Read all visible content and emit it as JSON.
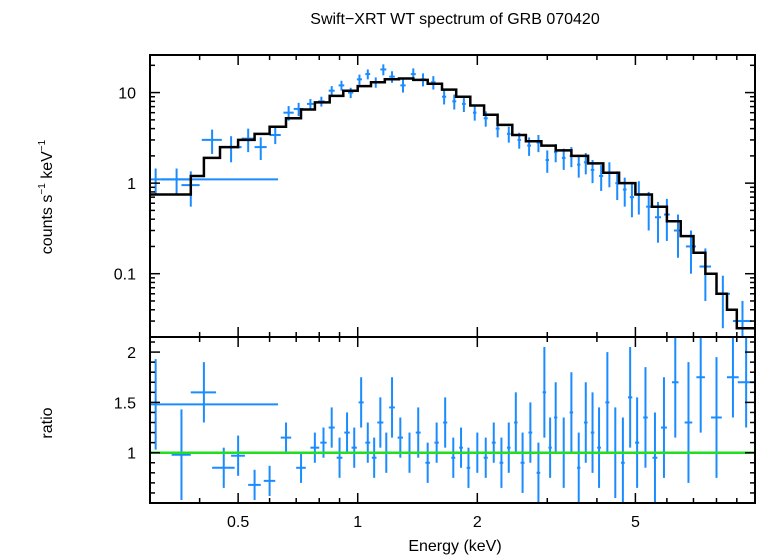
{
  "chart_data": [
    {
      "type": "scatter",
      "panel": "spectrum",
      "title": "Swift−XRT WT spectrum of GRB 070420",
      "ylabel_main": "counts s",
      "ylabel_sup1": "−1",
      "ylabel_mid": " keV",
      "ylabel_sup2": "−1",
      "x_scale": "log",
      "y_scale": "log",
      "xlim": [
        0.3,
        10
      ],
      "ylim": [
        0.02,
        26
      ],
      "yticks": [
        0.1,
        1,
        10
      ],
      "ytick_labels": [
        "0.1",
        "1",
        "10"
      ],
      "colors": {
        "data": "#1a8cff",
        "model": "#000000"
      },
      "data_points": [
        [
          0.31,
          0.32,
          1.1,
          0.35
        ],
        [
          0.35,
          0.03,
          1.1,
          0.35
        ],
        [
          0.38,
          0.02,
          0.95,
          0.4
        ],
        [
          0.43,
          0.025,
          3.0,
          0.9
        ],
        [
          0.48,
          0.03,
          2.5,
          0.8
        ],
        [
          0.53,
          0.02,
          3.1,
          0.9
        ],
        [
          0.57,
          0.02,
          2.5,
          0.7
        ],
        [
          0.62,
          0.02,
          3.4,
          0.7
        ],
        [
          0.67,
          0.02,
          6.0,
          1.1
        ],
        [
          0.71,
          0.02,
          6.6,
          1.1
        ],
        [
          0.76,
          0.015,
          7.5,
          1.0
        ],
        [
          0.81,
          0.015,
          8.0,
          1.0
        ],
        [
          0.86,
          0.015,
          10.5,
          1.3
        ],
        [
          0.91,
          0.015,
          12.0,
          1.5
        ],
        [
          0.96,
          0.015,
          10.0,
          1.3
        ],
        [
          1.01,
          0.015,
          14.0,
          1.8
        ],
        [
          1.06,
          0.015,
          16.0,
          2.0
        ],
        [
          1.11,
          0.015,
          13.0,
          1.7
        ],
        [
          1.16,
          0.02,
          18.0,
          2.5
        ],
        [
          1.22,
          0.02,
          15.0,
          2.2
        ],
        [
          1.3,
          0.02,
          12.0,
          2.0
        ],
        [
          1.38,
          0.02,
          16.0,
          2.5
        ],
        [
          1.46,
          0.02,
          14.0,
          2.3
        ],
        [
          1.55,
          0.02,
          13.0,
          2.2
        ],
        [
          1.65,
          0.02,
          9.0,
          1.6
        ],
        [
          1.75,
          0.02,
          8.0,
          1.5
        ],
        [
          1.85,
          0.02,
          7.5,
          1.4
        ],
        [
          1.97,
          0.02,
          6.0,
          1.1
        ],
        [
          2.1,
          0.025,
          5.2,
          1.0
        ],
        [
          2.25,
          0.025,
          4.0,
          0.8
        ],
        [
          2.4,
          0.025,
          3.5,
          0.7
        ],
        [
          2.55,
          0.025,
          3.0,
          0.6
        ],
        [
          2.7,
          0.03,
          2.6,
          0.6
        ],
        [
          2.85,
          0.03,
          2.8,
          0.6
        ],
        [
          3.0,
          0.03,
          1.8,
          0.5
        ],
        [
          3.15,
          0.03,
          2.2,
          0.5
        ],
        [
          3.3,
          0.035,
          1.9,
          0.5
        ],
        [
          3.45,
          0.035,
          2.0,
          0.5
        ],
        [
          3.6,
          0.035,
          1.6,
          0.45
        ],
        [
          3.75,
          0.04,
          1.7,
          0.45
        ],
        [
          3.9,
          0.04,
          1.4,
          0.4
        ],
        [
          4.1,
          0.05,
          1.2,
          0.38
        ],
        [
          4.3,
          0.05,
          1.3,
          0.4
        ],
        [
          4.5,
          0.05,
          1.0,
          0.35
        ],
        [
          4.7,
          0.05,
          0.85,
          0.3
        ],
        [
          4.9,
          0.06,
          0.7,
          0.28
        ],
        [
          5.1,
          0.06,
          0.75,
          0.3
        ],
        [
          5.4,
          0.08,
          0.55,
          0.25
        ],
        [
          5.7,
          0.1,
          0.42,
          0.2
        ],
        [
          6.0,
          0.1,
          0.45,
          0.22
        ],
        [
          6.4,
          0.15,
          0.3,
          0.15
        ],
        [
          6.9,
          0.2,
          0.2,
          0.1
        ],
        [
          7.5,
          0.25,
          0.12,
          0.07
        ],
        [
          8.3,
          0.35,
          0.06,
          0.035
        ],
        [
          9.3,
          0.5,
          0.03,
          0.02
        ]
      ],
      "model_steps": [
        [
          0.3,
          0.75
        ],
        [
          0.35,
          0.75
        ],
        [
          0.38,
          1.2
        ],
        [
          0.41,
          1.9
        ],
        [
          0.45,
          2.5
        ],
        [
          0.5,
          3.0
        ],
        [
          0.55,
          3.5
        ],
        [
          0.6,
          4.2
        ],
        [
          0.66,
          5.2
        ],
        [
          0.72,
          6.5
        ],
        [
          0.78,
          7.8
        ],
        [
          0.85,
          9.2
        ],
        [
          0.92,
          10.5
        ],
        [
          1.0,
          11.8
        ],
        [
          1.08,
          13.0
        ],
        [
          1.17,
          14.0
        ],
        [
          1.27,
          14.3
        ],
        [
          1.38,
          13.8
        ],
        [
          1.5,
          12.5
        ],
        [
          1.63,
          10.8
        ],
        [
          1.77,
          9.0
        ],
        [
          1.92,
          7.2
        ],
        [
          2.08,
          5.7
        ],
        [
          2.25,
          4.4
        ],
        [
          2.45,
          3.4
        ],
        [
          2.65,
          2.9
        ],
        [
          2.9,
          2.6
        ],
        [
          3.15,
          2.3
        ],
        [
          3.45,
          2.0
        ],
        [
          3.8,
          1.65
        ],
        [
          4.15,
          1.3
        ],
        [
          4.55,
          1.0
        ],
        [
          5.0,
          0.75
        ],
        [
          5.5,
          0.55
        ],
        [
          6.0,
          0.38
        ],
        [
          6.5,
          0.26
        ],
        [
          7.0,
          0.17
        ],
        [
          7.5,
          0.1
        ],
        [
          8.0,
          0.06
        ],
        [
          8.5,
          0.04
        ],
        [
          9.0,
          0.025
        ],
        [
          10.0,
          0.025
        ]
      ]
    },
    {
      "type": "scatter",
      "panel": "ratio",
      "ylabel": "ratio",
      "xlabel": "Energy (keV)",
      "x_scale": "log",
      "xlim": [
        0.3,
        10
      ],
      "ylim": [
        0.5,
        2.15
      ],
      "yticks": [
        1,
        1.5,
        2
      ],
      "ytick_labels": [
        "1",
        "1.5",
        "2"
      ],
      "xticks": [
        0.5,
        1,
        2,
        5
      ],
      "xtick_labels": [
        "0.5",
        "1",
        "2",
        "5"
      ],
      "reference_line": 1,
      "colors": {
        "data": "#1a8cff",
        "reference": "#22dd22"
      },
      "data_points": [
        [
          0.31,
          0.32,
          1.48,
          0.45
        ],
        [
          0.36,
          0.02,
          0.98,
          0.45
        ],
        [
          0.41,
          0.03,
          1.6,
          0.3
        ],
        [
          0.46,
          0.03,
          0.85,
          0.2
        ],
        [
          0.5,
          0.02,
          0.97,
          0.2
        ],
        [
          0.55,
          0.02,
          0.68,
          0.15
        ],
        [
          0.6,
          0.02,
          0.72,
          0.15
        ],
        [
          0.66,
          0.02,
          1.15,
          0.15
        ],
        [
          0.72,
          0.02,
          0.85,
          0.15
        ],
        [
          0.78,
          0.02,
          1.05,
          0.15
        ],
        [
          0.82,
          0.015,
          1.1,
          0.15
        ],
        [
          0.86,
          0.015,
          1.25,
          0.2
        ],
        [
          0.9,
          0.015,
          0.95,
          0.2
        ],
        [
          0.94,
          0.015,
          1.2,
          0.2
        ],
        [
          0.98,
          0.015,
          1.05,
          0.2
        ],
        [
          1.02,
          0.015,
          1.5,
          0.25
        ],
        [
          1.06,
          0.015,
          1.1,
          0.2
        ],
        [
          1.1,
          0.015,
          0.95,
          0.2
        ],
        [
          1.14,
          0.02,
          1.3,
          0.25
        ],
        [
          1.18,
          0.02,
          1.0,
          0.2
        ],
        [
          1.22,
          0.02,
          1.45,
          0.3
        ],
        [
          1.28,
          0.02,
          1.15,
          0.2
        ],
        [
          1.35,
          0.02,
          1.0,
          0.2
        ],
        [
          1.42,
          0.02,
          1.2,
          0.25
        ],
        [
          1.5,
          0.02,
          0.9,
          0.2
        ],
        [
          1.58,
          0.02,
          1.1,
          0.2
        ],
        [
          1.66,
          0.02,
          1.3,
          0.25
        ],
        [
          1.74,
          0.02,
          0.95,
          0.2
        ],
        [
          1.82,
          0.02,
          1.05,
          0.2
        ],
        [
          1.9,
          0.02,
          0.85,
          0.2
        ],
        [
          2.0,
          0.025,
          1.0,
          0.2
        ],
        [
          2.1,
          0.025,
          0.95,
          0.2
        ],
        [
          2.2,
          0.025,
          1.1,
          0.2
        ],
        [
          2.3,
          0.025,
          0.9,
          0.25
        ],
        [
          2.4,
          0.025,
          1.05,
          0.25
        ],
        [
          2.5,
          0.025,
          1.3,
          0.3
        ],
        [
          2.6,
          0.03,
          0.9,
          0.3
        ],
        [
          2.72,
          0.03,
          1.2,
          0.3
        ],
        [
          2.85,
          0.03,
          0.8,
          0.3
        ],
        [
          2.95,
          0.03,
          1.6,
          0.45
        ],
        [
          3.05,
          0.03,
          1.05,
          0.3
        ],
        [
          3.15,
          0.03,
          1.35,
          0.35
        ],
        [
          3.3,
          0.035,
          1.0,
          0.35
        ],
        [
          3.45,
          0.035,
          1.4,
          0.4
        ],
        [
          3.6,
          0.035,
          0.85,
          0.35
        ],
        [
          3.75,
          0.04,
          1.3,
          0.4
        ],
        [
          3.9,
          0.04,
          1.2,
          0.4
        ],
        [
          4.05,
          0.045,
          1.05,
          0.4
        ],
        [
          4.25,
          0.05,
          1.5,
          0.5
        ],
        [
          4.45,
          0.05,
          1.0,
          0.45
        ],
        [
          4.65,
          0.05,
          0.9,
          0.45
        ],
        [
          4.85,
          0.06,
          1.55,
          0.5
        ],
        [
          5.05,
          0.06,
          1.1,
          0.45
        ],
        [
          5.3,
          0.07,
          1.35,
          0.5
        ],
        [
          5.6,
          0.08,
          0.95,
          0.45
        ],
        [
          5.9,
          0.1,
          1.25,
          0.5
        ],
        [
          6.3,
          0.12,
          1.7,
          0.55
        ],
        [
          6.8,
          0.15,
          1.3,
          0.6
        ],
        [
          7.3,
          0.18,
          1.75,
          0.55
        ],
        [
          8.0,
          0.25,
          1.35,
          0.6
        ],
        [
          8.8,
          0.3,
          1.75,
          0.4
        ],
        [
          9.5,
          0.45,
          1.7,
          0.45
        ]
      ]
    }
  ]
}
